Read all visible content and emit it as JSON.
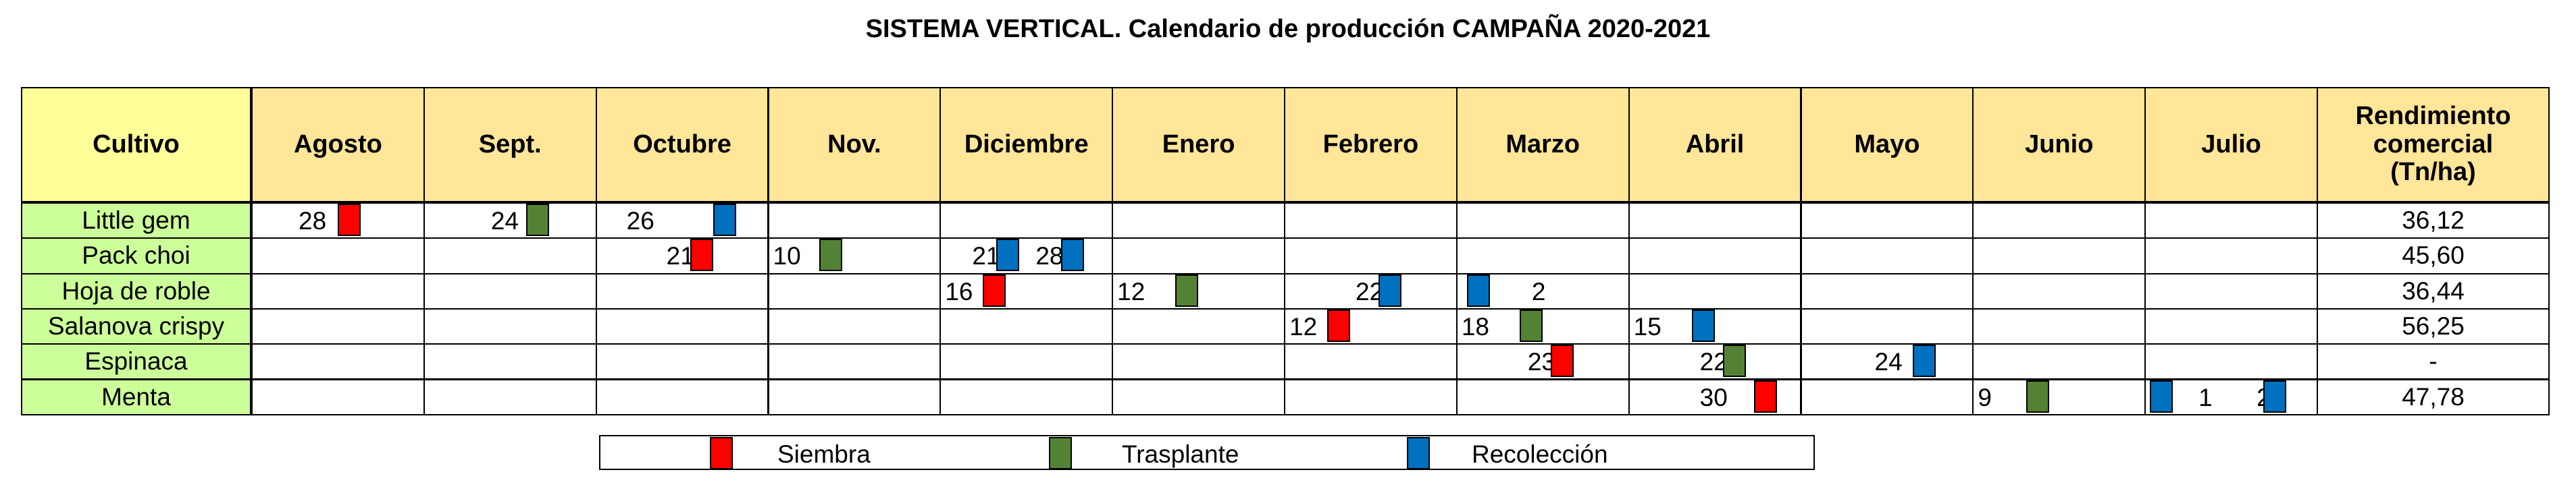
{
  "title": "SISTEMA VERTICAL. Calendario de producción CAMPAÑA 2020-2021",
  "headers": {
    "crop": "Cultivo",
    "months": [
      "Agosto",
      "Sept.",
      "Octubre",
      "Nov.",
      "Diciembre",
      "Enero",
      "Febrero",
      "Marzo",
      "Abril",
      "Mayo",
      "Junio",
      "Julio"
    ],
    "yield": "Rendimiento comercial (Tn/ha)"
  },
  "rows": [
    {
      "name": "Little gem",
      "yield": "36,12",
      "events": [
        {
          "month": 0,
          "day": "28",
          "type": "siembra"
        },
        {
          "month": 1,
          "day": "24",
          "type": "trasplante"
        },
        {
          "month": 2,
          "day": "26",
          "type": "recoleccion"
        }
      ]
    },
    {
      "name": "Pack choi",
      "yield": "45,60",
      "events": [
        {
          "month": 2,
          "day": "21",
          "type": "siembra"
        },
        {
          "month": 3,
          "day": "10",
          "type": "trasplante"
        },
        {
          "month": 4,
          "day": "21",
          "type": "recoleccion"
        },
        {
          "month": 4,
          "day": "28",
          "type": "recoleccion"
        }
      ]
    },
    {
      "name": "Hoja de roble",
      "yield": "36,44",
      "events": [
        {
          "month": 4,
          "day": "16",
          "type": "siembra"
        },
        {
          "month": 5,
          "day": "12",
          "type": "trasplante"
        },
        {
          "month": 6,
          "day": "22",
          "type": "recoleccion"
        },
        {
          "month": 7,
          "day": "2",
          "type": "recoleccion"
        }
      ]
    },
    {
      "name": "Salanova crispy",
      "yield": "56,25",
      "events": [
        {
          "month": 6,
          "day": "12",
          "type": "siembra"
        },
        {
          "month": 7,
          "day": "18",
          "type": "trasplante"
        },
        {
          "month": 8,
          "day": "15",
          "type": "recoleccion"
        }
      ]
    },
    {
      "name": "Espinaca",
      "yield": "-",
      "events": [
        {
          "month": 7,
          "day": "23",
          "type": "siembra"
        },
        {
          "month": 8,
          "day": "22",
          "type": "trasplante"
        },
        {
          "month": 9,
          "day": "24",
          "type": "recoleccion"
        }
      ]
    },
    {
      "name": "Menta",
      "yield": "47,78",
      "events": [
        {
          "month": 8,
          "day": "30",
          "type": "siembra"
        },
        {
          "month": 10,
          "day": "9",
          "type": "trasplante"
        },
        {
          "month": 11,
          "day": "1",
          "type": "recoleccion"
        },
        {
          "month": 11,
          "day": "26",
          "type": "recoleccion"
        }
      ]
    }
  ],
  "legend": {
    "siembra": "Siembra",
    "trasplante": "Trasplante",
    "recoleccion": "Recolección"
  },
  "colors": {
    "siembra": "#FF0000",
    "trasplante": "#548235",
    "recoleccion": "#0070C0",
    "header_bg": "#FFE699",
    "crop_header_bg": "#FFFF99",
    "crop_name_bg": "#CCFF99"
  }
}
